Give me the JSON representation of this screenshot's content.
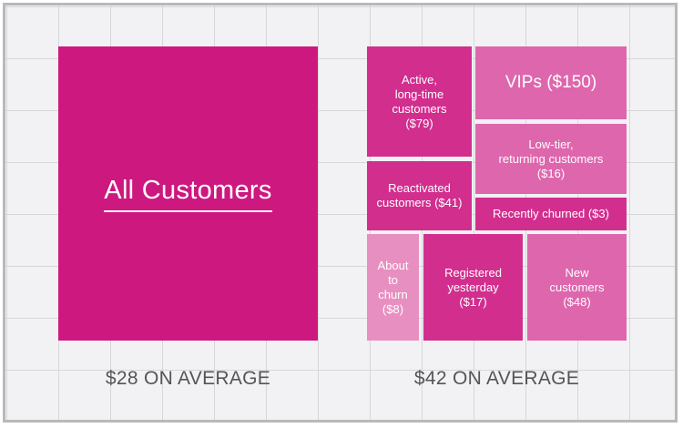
{
  "colors": {
    "all": "#cd1880",
    "dark": "#d22e8e",
    "medium": "#de66ad",
    "light": "#e88fc1",
    "grid_bg": "#f2f2f4",
    "text_avg": "#555558"
  },
  "all_customers": {
    "label": "All Customers",
    "average": "$28 ON AVERAGE"
  },
  "segments": {
    "average": "$42 ON AVERAGE",
    "active": {
      "label": "Active,\nlong-time\ncustomers\n($79)"
    },
    "vips": {
      "label": "VIPs ($150)"
    },
    "low_tier": {
      "label": "Low-tier,\nreturning customers\n($16)"
    },
    "reactivated": {
      "label": "Reactivated\ncustomers ($41)"
    },
    "recently_churned": {
      "label": "Recently churned ($3)"
    },
    "about_to_churn": {
      "label": "About\nto\nchurn\n($8)"
    },
    "registered_yesterday": {
      "label": "Registered\nyesterday\n($17)"
    },
    "new_customers": {
      "label": "New\ncustomers\n($48)"
    }
  }
}
